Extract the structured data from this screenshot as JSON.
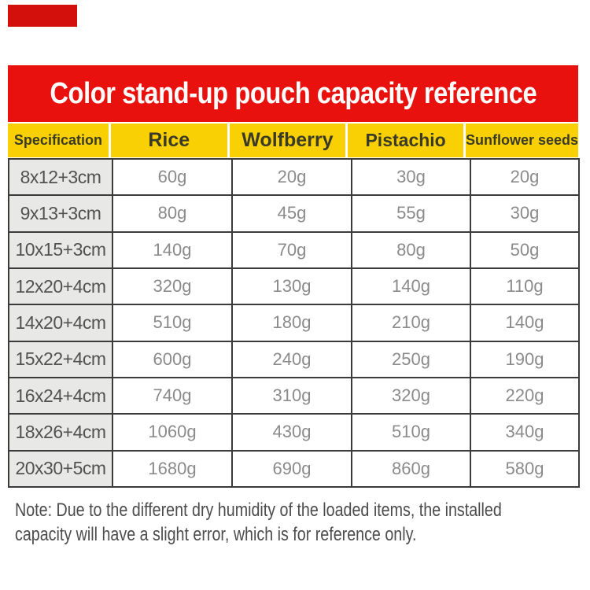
{
  "theme": {
    "banner_red": "#e9110d",
    "corner_red": "#d4100d",
    "header_yellow": "#f9d003",
    "header_text": "#3a3a28",
    "spec_bg": "#e8e8e6",
    "spec_text": "#525252",
    "value_text": "#8b8b8b",
    "border": "#3b3b3b",
    "note_text": "#4c4c4c",
    "title_text": "#ffffff"
  },
  "banner": {
    "title": "Color stand-up pouch capacity reference"
  },
  "table": {
    "columns": [
      "Specification",
      "Rice",
      "Wolfberry",
      "Pistachio",
      "Sunflower seeds"
    ],
    "rows": [
      {
        "spec": "8x12+3cm",
        "values": [
          "60g",
          "20g",
          "30g",
          "20g"
        ]
      },
      {
        "spec": "9x13+3cm",
        "values": [
          "80g",
          "45g",
          "55g",
          "30g"
        ]
      },
      {
        "spec": "10x15+3cm",
        "values": [
          "140g",
          "70g",
          "80g",
          "50g"
        ]
      },
      {
        "spec": "12x20+4cm",
        "values": [
          "320g",
          "130g",
          "140g",
          "110g"
        ]
      },
      {
        "spec": "14x20+4cm",
        "values": [
          "510g",
          "180g",
          "210g",
          "140g"
        ]
      },
      {
        "spec": "15x22+4cm",
        "values": [
          "600g",
          "240g",
          "250g",
          "190g"
        ]
      },
      {
        "spec": "16x24+4cm",
        "values": [
          "740g",
          "310g",
          "320g",
          "220g"
        ]
      },
      {
        "spec": "18x26+4cm",
        "values": [
          "1060g",
          "430g",
          "510g",
          "340g"
        ]
      },
      {
        "spec": "20x30+5cm",
        "values": [
          "1680g",
          "690g",
          "860g",
          "580g"
        ]
      }
    ]
  },
  "note": {
    "line1": "Note: Due to the different dry humidity of the loaded items, the installed",
    "line2": "capacity will have a slight error, which is for reference only."
  },
  "chart_data": {
    "type": "table",
    "title": "Color stand-up pouch capacity reference",
    "columns": [
      "Specification",
      "Rice",
      "Wolfberry",
      "Pistachio",
      "Sunflower seeds"
    ],
    "unit": "g",
    "rows": [
      [
        "8x12+3cm",
        60,
        20,
        30,
        20
      ],
      [
        "9x13+3cm",
        80,
        45,
        55,
        30
      ],
      [
        "10x15+3cm",
        140,
        70,
        80,
        50
      ],
      [
        "12x20+4cm",
        320,
        130,
        140,
        110
      ],
      [
        "14x20+4cm",
        510,
        180,
        210,
        140
      ],
      [
        "15x22+4cm",
        600,
        240,
        250,
        190
      ],
      [
        "16x24+4cm",
        740,
        310,
        320,
        220
      ],
      [
        "18x26+4cm",
        1060,
        430,
        510,
        340
      ],
      [
        "20x30+5cm",
        1680,
        690,
        860,
        580
      ]
    ],
    "footnote": "Note: Due to the different dry humidity of the loaded items, the installed capacity will have a slight error, which is for reference only."
  }
}
